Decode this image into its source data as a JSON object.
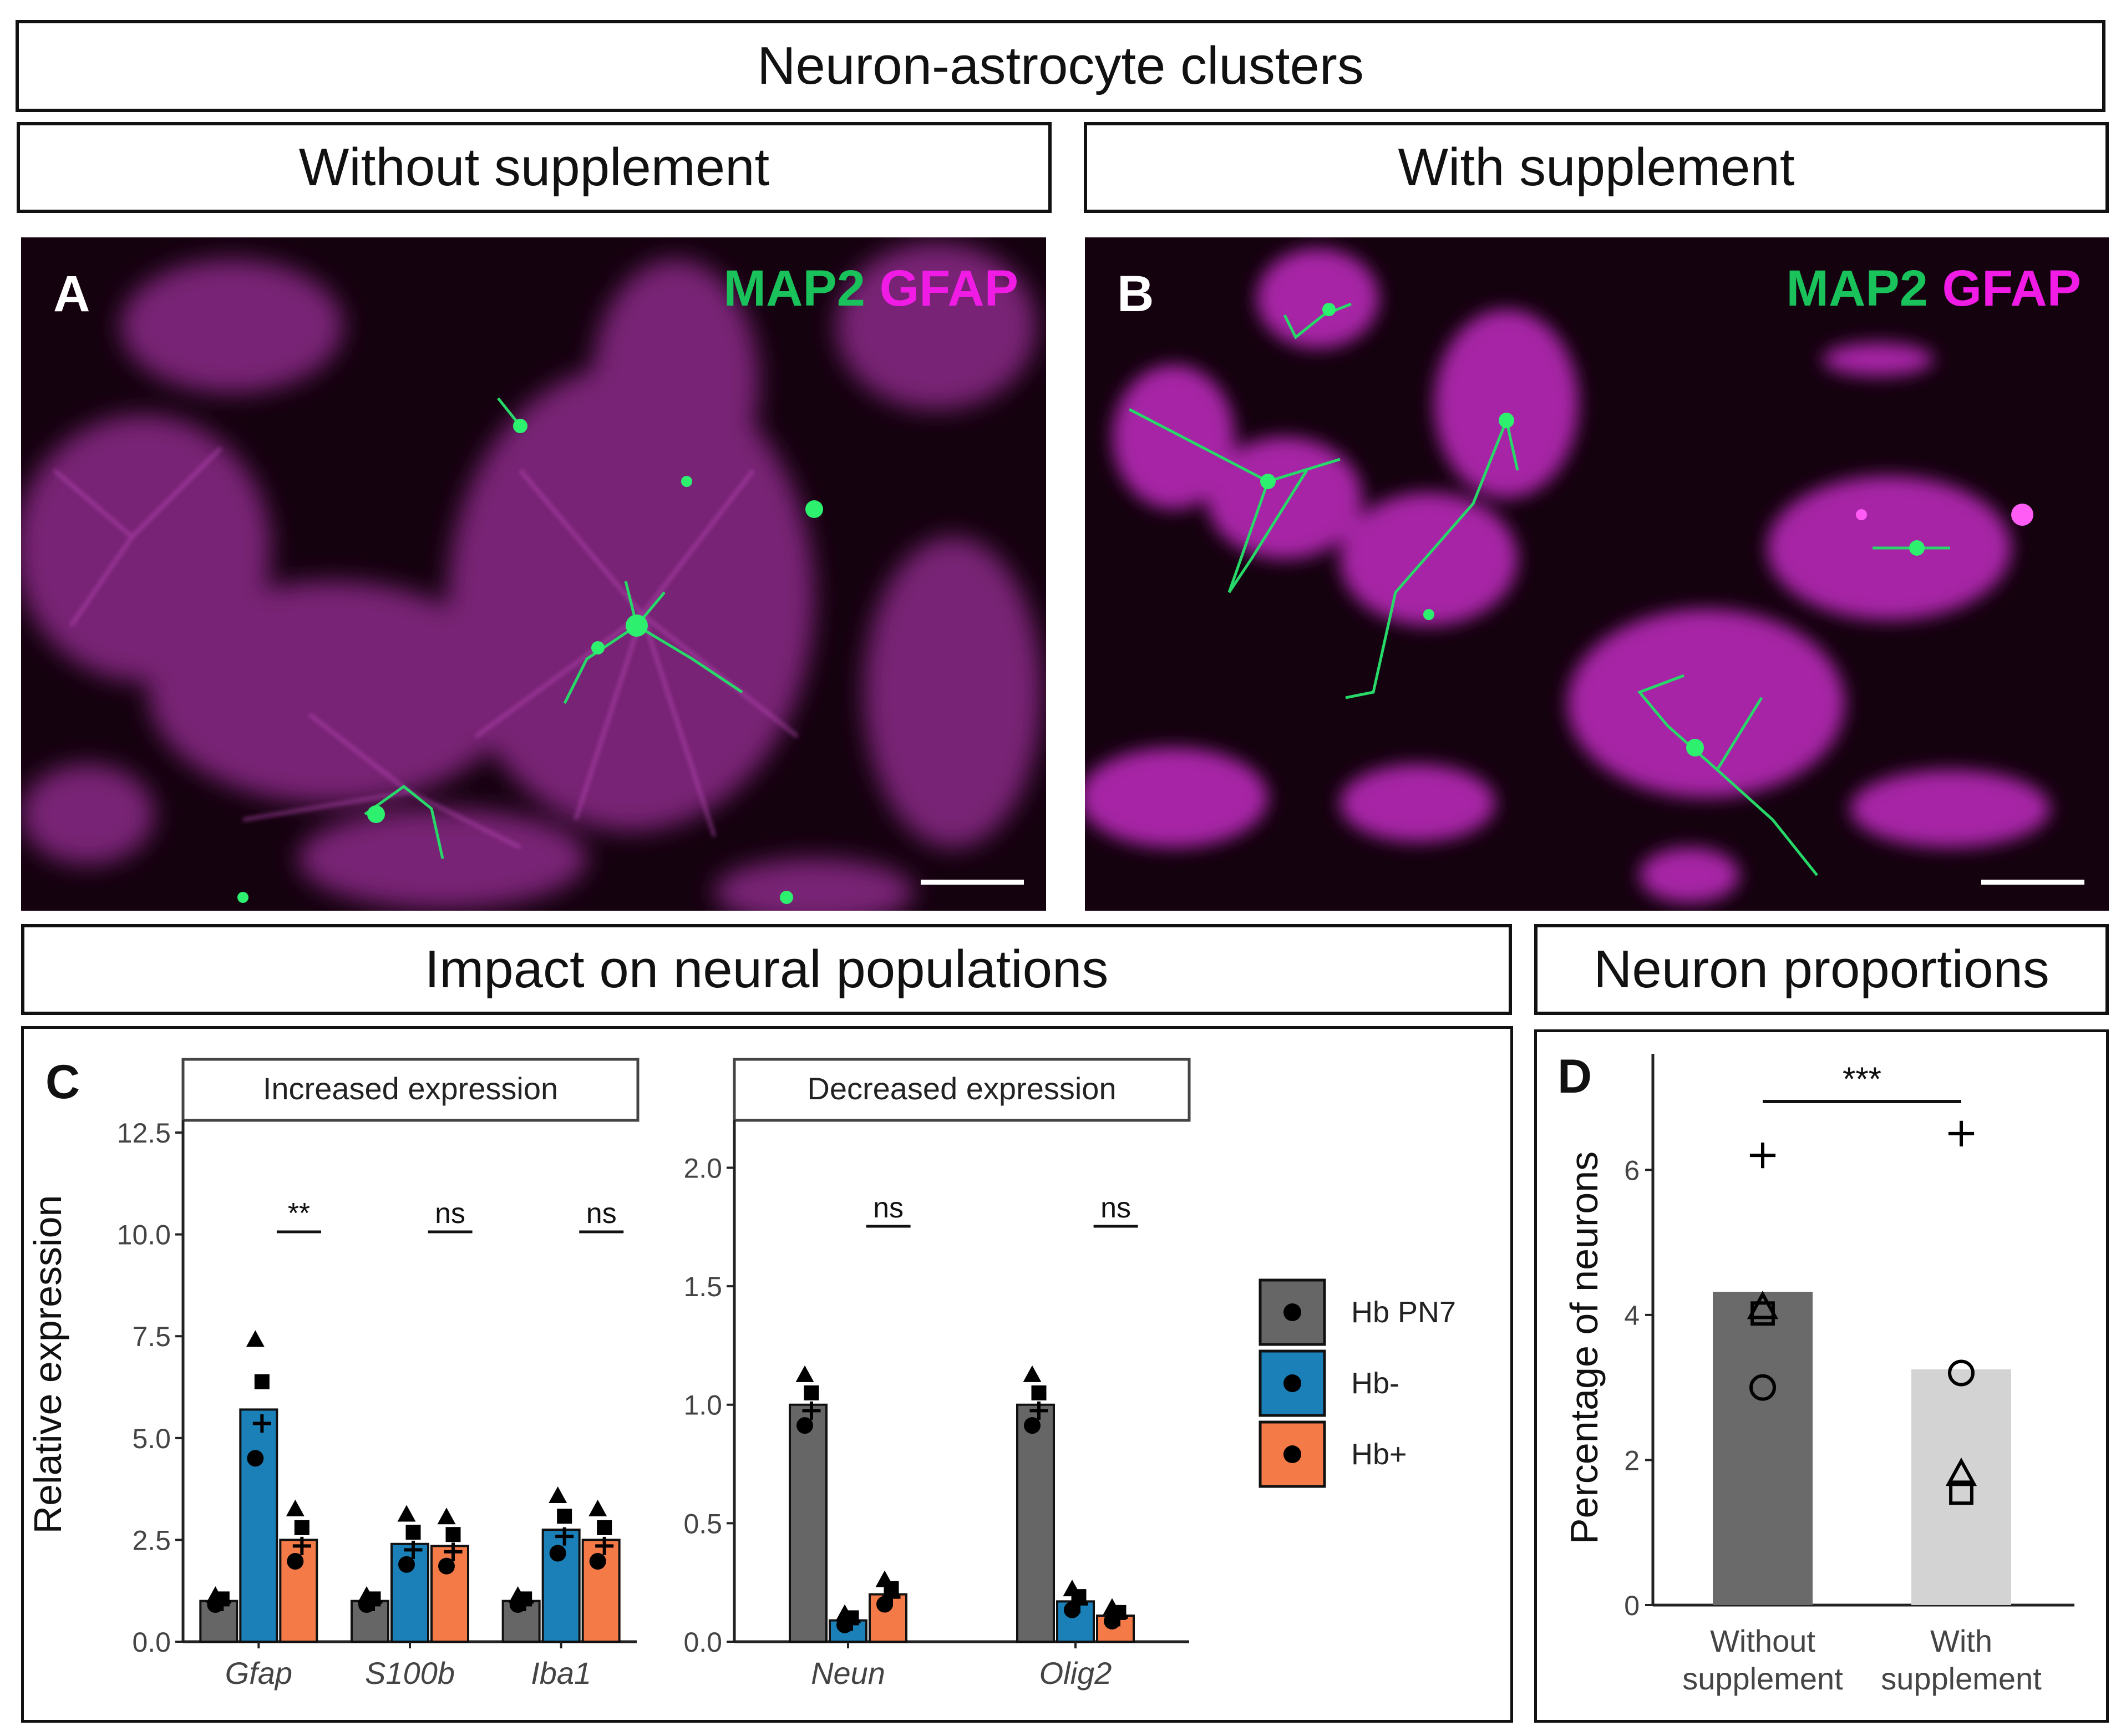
{
  "header": {
    "title": "Neuron-astrocyte clusters"
  },
  "conditions": {
    "left": "Without supplement",
    "right": "With supplement"
  },
  "panel_a": {
    "letter": "A",
    "stain_green": "MAP2",
    "stain_magenta": "GFAP"
  },
  "panel_b": {
    "letter": "B",
    "stain_green": "MAP2",
    "stain_magenta": "GFAP"
  },
  "section_c": {
    "title": "Impact on neural populations",
    "letter": "C"
  },
  "section_d": {
    "title": "Neuron proportions",
    "letter": "D"
  },
  "colors": {
    "hb_pn7": "#666666",
    "hb_minus": "#1b7fb8",
    "hb_plus": "#f47a48",
    "green": "#19c25a",
    "magenta": "#f01ce6"
  },
  "chart_data": [
    {
      "type": "bar",
      "facet": "Increased expression",
      "ylabel": "Relative expression",
      "ylim": [
        0,
        12.8
      ],
      "yticks": [
        "0.0",
        "2.5",
        "5.0",
        "7.5",
        "10.0",
        "12.5"
      ],
      "categories": [
        "Gfap",
        "S100b",
        "Iba1"
      ],
      "series": [
        {
          "name": "Hb PN7",
          "values": [
            1.0,
            1.0,
            1.0
          ]
        },
        {
          "name": "Hb-",
          "values": [
            5.7,
            2.4,
            2.75
          ]
        },
        {
          "name": "Hb+",
          "values": [
            2.5,
            2.35,
            2.5
          ]
        }
      ],
      "significance": [
        "**",
        "ns",
        "ns"
      ]
    },
    {
      "type": "bar",
      "facet": "Decreased expression",
      "ylim": [
        0,
        2.2
      ],
      "yticks": [
        "0.0",
        "0.5",
        "1.0",
        "1.5",
        "2.0"
      ],
      "categories": [
        "Neun",
        "Olig2"
      ],
      "series": [
        {
          "name": "Hb PN7",
          "values": [
            1.0,
            1.0
          ]
        },
        {
          "name": "Hb-",
          "values": [
            0.09,
            0.17
          ]
        },
        {
          "name": "Hb+",
          "values": [
            0.2,
            0.11
          ]
        }
      ],
      "significance": [
        "ns",
        "ns"
      ]
    },
    {
      "type": "bar",
      "ylabel": "Percentage of neurons",
      "ylim": [
        0,
        7.6
      ],
      "yticks": [
        "0",
        "2",
        "4",
        "6"
      ],
      "categories": [
        "Without supplement",
        "With supplement"
      ],
      "values": [
        4.32,
        3.25
      ],
      "points": [
        {
          "x": "Without supplement",
          "y": 6.2,
          "shape": "plus"
        },
        {
          "x": "Without supplement",
          "y": 4.1,
          "shape": "triangle"
        },
        {
          "x": "Without supplement",
          "y": 4.02,
          "shape": "square"
        },
        {
          "x": "Without supplement",
          "y": 3.0,
          "shape": "circle"
        },
        {
          "x": "With supplement",
          "y": 6.5,
          "shape": "plus"
        },
        {
          "x": "With supplement",
          "y": 3.2,
          "shape": "circle"
        },
        {
          "x": "With supplement",
          "y": 1.8,
          "shape": "triangle"
        },
        {
          "x": "With supplement",
          "y": 1.55,
          "shape": "square"
        }
      ],
      "significance": "***"
    }
  ],
  "legend": {
    "items": [
      "Hb PN7",
      "Hb-",
      "Hb+"
    ]
  }
}
